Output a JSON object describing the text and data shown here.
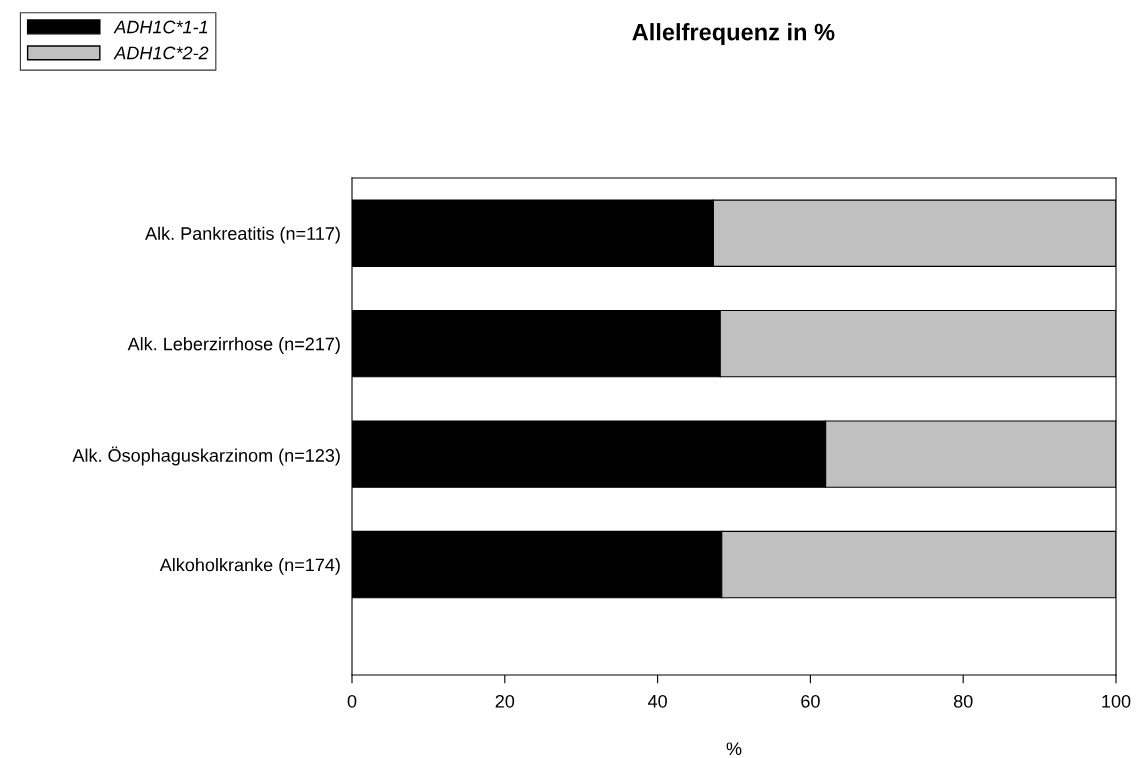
{
  "chart_data": {
    "type": "bar",
    "orientation": "horizontal",
    "stacked": true,
    "title": "Allelfrequenz in %",
    "xlabel": "%",
    "categories": [
      "Alk. Pankreatitis (n=117)",
      "Alk. Leberzirrhose (n=217)",
      "Alk. Ösophaguskarzinom (n=123)",
      "Alkoholkranke (n=174)"
    ],
    "series": [
      {
        "name": "ADH1C*1-1",
        "color": "#000000",
        "values": [
          47.3,
          48.2,
          62.0,
          48.4
        ]
      },
      {
        "name": "ADH1C*2-2",
        "color": "#c0c0c0",
        "values": [
          52.7,
          51.8,
          38.0,
          51.6
        ]
      }
    ],
    "xlim": [
      0,
      100
    ],
    "xticks": [
      0,
      20,
      40,
      60,
      80,
      100
    ],
    "grid": false,
    "legend": "top left"
  }
}
